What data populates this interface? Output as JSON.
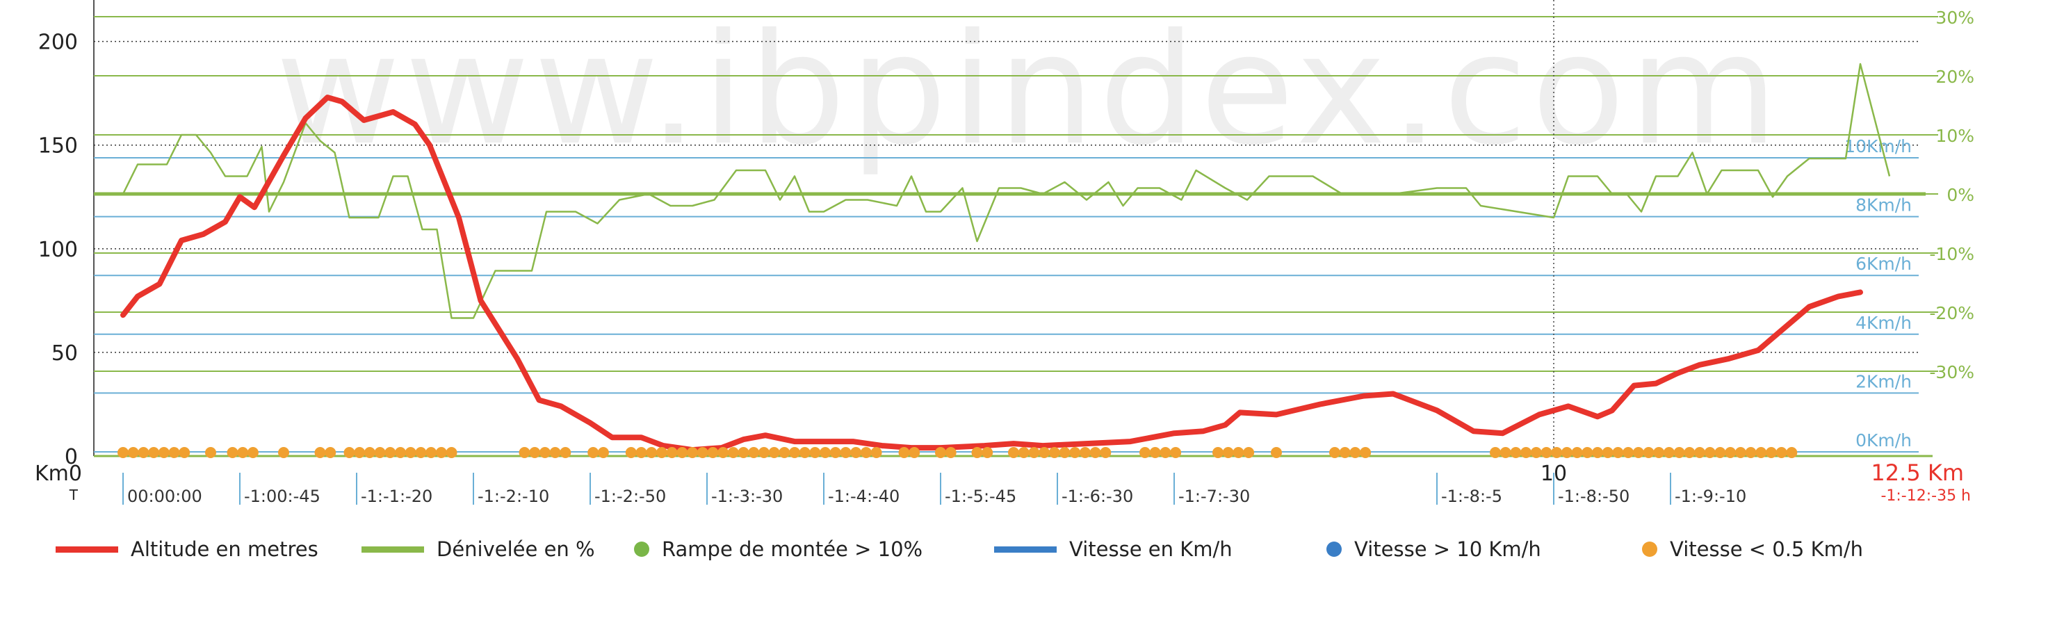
{
  "colors": {
    "altitude": "#e8342c",
    "grade": "#8ab84a",
    "speed": "#6aafd6",
    "speed_fast": "#3a7ec6",
    "slow": "#f0a030",
    "climb": "#7ab648",
    "time_label": "#e8342c",
    "watermark": "#eeeeee"
  },
  "watermark": "www.ibpindex.com",
  "chart_data": {
    "type": "line",
    "xlabel": "Km",
    "xlim": [
      0,
      12.5
    ],
    "ylim_left": [
      0,
      220
    ],
    "ylim_grade": [
      -30,
      30
    ],
    "left_ticks": [
      "0",
      "50",
      "100",
      "150",
      "200"
    ],
    "grade_ticks": [
      "30%",
      "20%",
      "10%",
      "0%",
      "-10%",
      "-20%",
      "-30%"
    ],
    "speed_ticks": [
      "10Km/h",
      "8Km/h",
      "6Km/h",
      "4Km/h",
      "2Km/h",
      "0Km/h"
    ],
    "x_tick_labels": [
      {
        "x": 0,
        "label": "0"
      },
      {
        "x": 10,
        "label": "10"
      },
      {
        "x": 12.5,
        "label": "12.5 Km"
      }
    ],
    "time_row_start": "T",
    "time_labels": [
      {
        "x": 0.2,
        "label": "00:00:00"
      },
      {
        "x": 1.0,
        "label": "-1:00:-45"
      },
      {
        "x": 1.8,
        "label": "-1:-1:-20"
      },
      {
        "x": 2.6,
        "label": "-1:-2:-10"
      },
      {
        "x": 3.4,
        "label": "-1:-2:-50"
      },
      {
        "x": 4.2,
        "label": "-1:-3:-30"
      },
      {
        "x": 5.0,
        "label": "-1:-4:-40"
      },
      {
        "x": 5.8,
        "label": "-1:-5:-45"
      },
      {
        "x": 6.6,
        "label": "-1:-6:-30"
      },
      {
        "x": 7.4,
        "label": "-1:-7:-30"
      },
      {
        "x": 9.2,
        "label": "-1:-8:-5"
      },
      {
        "x": 10.0,
        "label": "-1:-8:-50"
      },
      {
        "x": 10.8,
        "label": "-1:-9:-10"
      }
    ],
    "end_time": "-1:-12:-35 h",
    "series": [
      {
        "name": "Altitude en metres",
        "values": [
          [
            0.2,
            68
          ],
          [
            0.3,
            77
          ],
          [
            0.45,
            83
          ],
          [
            0.6,
            104
          ],
          [
            0.75,
            107
          ],
          [
            0.9,
            113
          ],
          [
            1.0,
            125
          ],
          [
            1.1,
            120
          ],
          [
            1.3,
            145
          ],
          [
            1.45,
            163
          ],
          [
            1.6,
            173
          ],
          [
            1.7,
            171
          ],
          [
            1.85,
            162
          ],
          [
            1.95,
            164
          ],
          [
            2.05,
            166
          ],
          [
            2.2,
            160
          ],
          [
            2.3,
            150
          ],
          [
            2.5,
            115
          ],
          [
            2.65,
            75
          ],
          [
            2.9,
            47
          ],
          [
            3.05,
            27
          ],
          [
            3.2,
            24
          ],
          [
            3.4,
            16
          ],
          [
            3.55,
            9
          ],
          [
            3.75,
            9
          ],
          [
            3.9,
            5
          ],
          [
            4.1,
            3
          ],
          [
            4.3,
            4
          ],
          [
            4.45,
            8
          ],
          [
            4.6,
            10
          ],
          [
            4.8,
            7
          ],
          [
            5.0,
            7
          ],
          [
            5.2,
            7
          ],
          [
            5.4,
            5
          ],
          [
            5.6,
            4
          ],
          [
            5.8,
            4
          ],
          [
            6.1,
            5
          ],
          [
            6.3,
            6
          ],
          [
            6.5,
            5
          ],
          [
            6.8,
            6
          ],
          [
            7.1,
            7
          ],
          [
            7.4,
            11
          ],
          [
            7.6,
            12
          ],
          [
            7.75,
            15
          ],
          [
            7.85,
            21
          ],
          [
            8.1,
            20
          ],
          [
            8.4,
            25
          ],
          [
            8.7,
            29
          ],
          [
            8.9,
            30
          ],
          [
            9.2,
            22
          ],
          [
            9.45,
            12
          ],
          [
            9.65,
            11
          ],
          [
            9.9,
            20
          ],
          [
            10.1,
            24
          ],
          [
            10.3,
            19
          ],
          [
            10.4,
            22
          ],
          [
            10.55,
            34
          ],
          [
            10.7,
            35
          ],
          [
            10.85,
            40
          ],
          [
            11.0,
            44
          ],
          [
            11.2,
            47
          ],
          [
            11.4,
            51
          ],
          [
            11.55,
            60
          ],
          [
            11.75,
            72
          ],
          [
            11.95,
            77
          ],
          [
            12.1,
            79
          ]
        ]
      },
      {
        "name": "Dénivelée en %",
        "values": [
          [
            0.2,
            0
          ],
          [
            0.3,
            5
          ],
          [
            0.45,
            5
          ],
          [
            0.5,
            5
          ],
          [
            0.6,
            10
          ],
          [
            0.7,
            10
          ],
          [
            0.8,
            7
          ],
          [
            0.9,
            3
          ],
          [
            1.05,
            3
          ],
          [
            1.15,
            8
          ],
          [
            1.2,
            -3
          ],
          [
            1.3,
            2
          ],
          [
            1.45,
            12
          ],
          [
            1.55,
            9
          ],
          [
            1.65,
            7
          ],
          [
            1.75,
            -4
          ],
          [
            1.95,
            -4
          ],
          [
            2.05,
            3
          ],
          [
            2.15,
            3
          ],
          [
            2.25,
            -6
          ],
          [
            2.35,
            -6
          ],
          [
            2.45,
            -21
          ],
          [
            2.6,
            -21
          ],
          [
            2.75,
            -13
          ],
          [
            3.0,
            -13
          ],
          [
            3.1,
            -3
          ],
          [
            3.3,
            -3
          ],
          [
            3.45,
            -5
          ],
          [
            3.6,
            -1
          ],
          [
            3.8,
            0
          ],
          [
            3.95,
            -2
          ],
          [
            4.1,
            -2
          ],
          [
            4.25,
            -1
          ],
          [
            4.4,
            4
          ],
          [
            4.6,
            4
          ],
          [
            4.7,
            -1
          ],
          [
            4.8,
            3
          ],
          [
            4.9,
            -3
          ],
          [
            5.0,
            -3
          ],
          [
            5.15,
            -1
          ],
          [
            5.3,
            -1
          ],
          [
            5.5,
            -2
          ],
          [
            5.6,
            3
          ],
          [
            5.7,
            -3
          ],
          [
            5.8,
            -3
          ],
          [
            5.95,
            1
          ],
          [
            6.05,
            -8
          ],
          [
            6.2,
            1
          ],
          [
            6.35,
            1
          ],
          [
            6.5,
            0
          ],
          [
            6.65,
            2
          ],
          [
            6.8,
            -1
          ],
          [
            6.95,
            2
          ],
          [
            7.05,
            -2
          ],
          [
            7.15,
            1
          ],
          [
            7.3,
            1
          ],
          [
            7.45,
            -1
          ],
          [
            7.55,
            4
          ],
          [
            7.75,
            1
          ],
          [
            7.9,
            -1
          ],
          [
            8.05,
            3
          ],
          [
            8.2,
            3
          ],
          [
            8.35,
            3
          ],
          [
            8.55,
            0
          ],
          [
            8.8,
            0
          ],
          [
            8.9,
            0
          ],
          [
            9.2,
            1
          ],
          [
            9.4,
            1
          ],
          [
            9.5,
            -2
          ],
          [
            10.0,
            -4
          ],
          [
            10.1,
            3
          ],
          [
            10.3,
            3
          ],
          [
            10.4,
            0
          ],
          [
            10.5,
            0
          ],
          [
            10.6,
            -3
          ],
          [
            10.7,
            3
          ],
          [
            10.85,
            3
          ],
          [
            10.95,
            7
          ],
          [
            11.05,
            0
          ],
          [
            11.15,
            4
          ],
          [
            11.4,
            4
          ],
          [
            11.5,
            -0.5
          ],
          [
            11.6,
            3
          ],
          [
            11.75,
            6
          ],
          [
            12.0,
            6
          ],
          [
            12.1,
            22
          ],
          [
            12.3,
            3
          ]
        ]
      }
    ],
    "slow_points_x": [
      0.2,
      0.27,
      0.34,
      0.41,
      0.48,
      0.55,
      0.62,
      0.8,
      0.95,
      1.02,
      1.09,
      1.3,
      1.55,
      1.62,
      1.75,
      1.82,
      1.89,
      1.96,
      2.03,
      2.1,
      2.17,
      2.24,
      2.31,
      2.38,
      2.45,
      2.95,
      3.02,
      3.09,
      3.16,
      3.23,
      3.42,
      3.49,
      3.68,
      3.75,
      3.82,
      3.89,
      3.96,
      4.03,
      4.1,
      4.17,
      4.24,
      4.31,
      4.38,
      4.45,
      4.52,
      4.59,
      4.66,
      4.73,
      4.8,
      4.87,
      4.94,
      5.01,
      5.08,
      5.15,
      5.22,
      5.29,
      5.36,
      5.55,
      5.62,
      5.8,
      5.87,
      6.05,
      6.12,
      6.3,
      6.37,
      6.44,
      6.51,
      6.58,
      6.65,
      6.72,
      6.79,
      6.86,
      6.93,
      7.2,
      7.27,
      7.34,
      7.41,
      7.7,
      7.77,
      7.84,
      7.91,
      8.1,
      8.5,
      8.57,
      8.64,
      8.71,
      9.6,
      9.67,
      9.74,
      9.81,
      9.88,
      9.95,
      10.02,
      10.09,
      10.16,
      10.23,
      10.3,
      10.37,
      10.44,
      10.51,
      10.58,
      10.65,
      10.72,
      10.79,
      10.86,
      10.93,
      11.0,
      11.07,
      11.14,
      11.21,
      11.28,
      11.35,
      11.42,
      11.49,
      11.56,
      11.63
    ]
  },
  "legend": [
    {
      "label": "Altitude en metres",
      "symbol": "line",
      "color": "#e8342c"
    },
    {
      "label": "Dénivelée en %",
      "symbol": "line",
      "color": "#8ab84a"
    },
    {
      "label": "Rampe de montée > 10%",
      "symbol": "dot",
      "color": "#7ab648"
    },
    {
      "label": "Vitesse en Km/h",
      "symbol": "line",
      "color": "#3a7ec6"
    },
    {
      "label": "Vitesse > 10 Km/h",
      "symbol": "dot",
      "color": "#3a7ec6"
    },
    {
      "label": "Vitesse < 0.5 Km/h",
      "symbol": "dot",
      "color": "#f0a030"
    }
  ]
}
